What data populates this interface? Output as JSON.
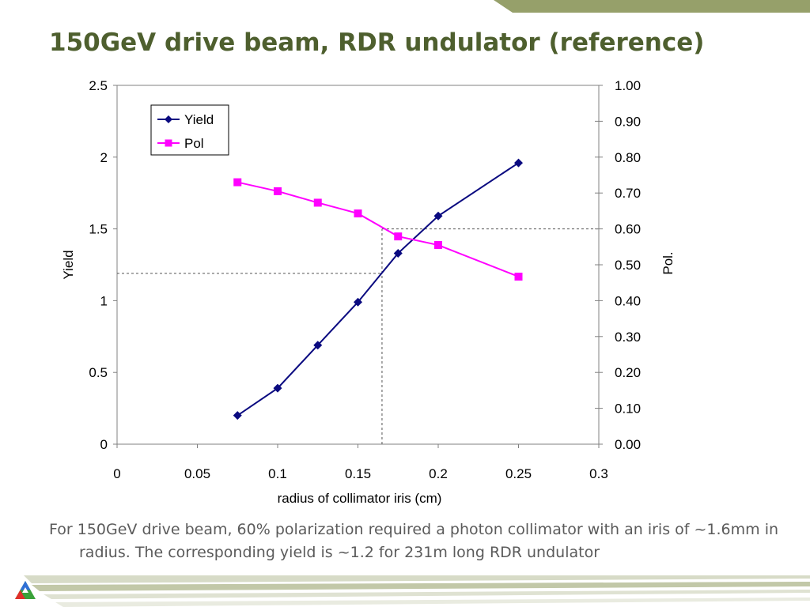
{
  "slide": {
    "title": "150GeV drive beam, RDR undulator (reference)",
    "caption": "For 150GeV drive beam, 60% polarization required a photon collimator with an iris of ~1.6mm in radius.  The corresponding yield is ~1.2 for 231m long RDR undulator",
    "logo": "triangle-logo-icon",
    "colors": {
      "title": "#4e5f2e",
      "accent_bar": "#96a06a",
      "caption": "#5b5b5b"
    }
  },
  "chart_data": {
    "type": "line",
    "xlabel": "radius of collimator iris (cm)",
    "ylabel": "Yield",
    "y2label": "Pol.",
    "xlim": [
      0,
      0.3
    ],
    "ylim": [
      0,
      2.5
    ],
    "y2lim": [
      0,
      1.0
    ],
    "xticks": [
      "0",
      "0.05",
      "0.1",
      "0.15",
      "0.2",
      "0.25",
      "0.3"
    ],
    "yticks": [
      "0",
      "0.5",
      "1",
      "1.5",
      "2",
      "2.5"
    ],
    "y2ticks": [
      "0.00",
      "0.10",
      "0.20",
      "0.30",
      "0.40",
      "0.50",
      "0.60",
      "0.70",
      "0.80",
      "0.90",
      "1.00"
    ],
    "grid": false,
    "legend_position": "top-left",
    "series": [
      {
        "name": "Yield",
        "axis": "left",
        "color": "#0a0a80",
        "marker": "diamond",
        "x": [
          0.075,
          0.1,
          0.125,
          0.15,
          0.175,
          0.2,
          0.25
        ],
        "y": [
          0.2,
          0.39,
          0.69,
          0.99,
          1.33,
          1.59,
          1.96
        ]
      },
      {
        "name": "Pol",
        "axis": "right",
        "color": "#ff00ff",
        "marker": "square",
        "x": [
          0.075,
          0.1,
          0.125,
          0.15,
          0.175,
          0.2,
          0.25
        ],
        "y": [
          0.73,
          0.705,
          0.673,
          0.643,
          0.579,
          0.555,
          0.467
        ]
      }
    ],
    "reference_lines": [
      {
        "axis": "left",
        "y": 1.19,
        "from_x": 0,
        "to_x": 0.165
      },
      {
        "axis": "x",
        "x": 0.165,
        "from_y": 0,
        "to_y": 1.5
      },
      {
        "axis": "right",
        "y": 0.6,
        "from_x": 0.165,
        "to_x": 0.3
      }
    ]
  }
}
